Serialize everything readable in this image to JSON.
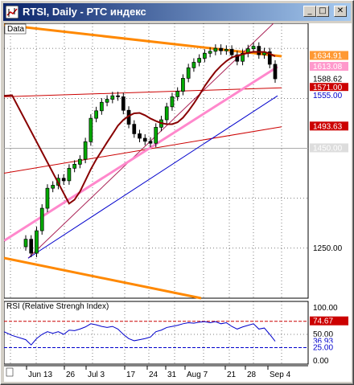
{
  "window": {
    "title": "RTSI, Daily - РТС индекс",
    "buttons": {
      "minimize": "_",
      "maximize": "□",
      "close": "✕"
    }
  },
  "main_panel": {
    "tag": "Data",
    "price_labels": [
      {
        "text": "1634.91",
        "color": "#ff9933",
        "text_color": "#ffffff",
        "value": 1634.91
      },
      {
        "text": "1613.08",
        "color": "#ff99cc",
        "text_color": "#ffffff",
        "value": 1613.08
      },
      {
        "text": "1588.62",
        "color": "#ffffff",
        "text_color": "#000000",
        "value": 1588.62
      },
      {
        "text": "1571.00",
        "color": "#cc0000",
        "text_color": "#ffffff",
        "value": 1571.0
      },
      {
        "text": "1555.00",
        "color": "#ffffff",
        "text_color": "#0000cc",
        "value": 1555.0
      },
      {
        "text": "1493.63",
        "color": "#cc0000",
        "text_color": "#ffffff",
        "value": 1493.63
      },
      {
        "text": "1450.00",
        "color": "#dddddd",
        "text_color": "#ffffff",
        "value": 1450.0
      },
      {
        "text": "1250.00",
        "color": "#ffffff",
        "text_color": "#000000",
        "value": 1250.0
      }
    ]
  },
  "rsi_panel": {
    "title": "RSI (Relative Strengh Index)",
    "labels": [
      {
        "text": "100.00",
        "value": 100
      },
      {
        "text": "74.67",
        "value": 74.67,
        "color": "#cc0000"
      },
      {
        "text": "50.00",
        "value": 50
      },
      {
        "text": "36.93",
        "value": 36.93,
        "color": "#0000cc"
      },
      {
        "text": "25.00",
        "value": 25,
        "color": "#0000cc"
      },
      {
        "text": "0.00",
        "value": 0
      }
    ]
  },
  "x_axis": {
    "labels": [
      "Jun 13",
      "26",
      "Jul 3",
      "17",
      "24",
      "31",
      "Aug 7",
      "21",
      "28",
      "Sep 4"
    ]
  },
  "chart_data": {
    "type": "candlestick",
    "title": "RTSI, Daily - РТС индекс",
    "ylim": [
      1150,
      1700
    ],
    "x": [
      "Jun 13",
      "26",
      "Jul 3",
      "17",
      "24",
      "31",
      "Aug 7",
      "21",
      "28",
      "Sep 4"
    ],
    "price_series": [
      1268,
      1240,
      1285,
      1330,
      1370,
      1376,
      1390,
      1385,
      1410,
      1418,
      1428,
      1463,
      1510,
      1525,
      1542,
      1548,
      1555,
      1553,
      1526,
      1498,
      1479,
      1470,
      1464,
      1460,
      1492,
      1507,
      1533,
      1553,
      1564,
      1590,
      1611,
      1622,
      1630,
      1640,
      1644,
      1650,
      1645,
      1648,
      1637,
      1624,
      1640,
      1649,
      1654,
      1637,
      1643,
      1618,
      1589
    ],
    "rsi_series": [
      40,
      30,
      42,
      50,
      55,
      52,
      55,
      50,
      58,
      57,
      60,
      64,
      70,
      68,
      65,
      63,
      65,
      60,
      50,
      42,
      38,
      40,
      42,
      45,
      55,
      58,
      63,
      65,
      67,
      70,
      72,
      71,
      73,
      74,
      72,
      74,
      70,
      72,
      65,
      60,
      64,
      67,
      70,
      60,
      62,
      50,
      37
    ],
    "rsi_ylim": [
      0,
      100
    ],
    "overlays": [
      "moving average",
      "trend channel",
      "fibonacci fan lines"
    ]
  }
}
